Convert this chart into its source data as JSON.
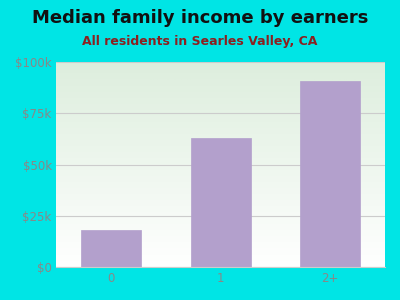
{
  "title": "Median family income by earners",
  "subtitle": "All residents in Searles Valley, CA",
  "categories": [
    "0",
    "1",
    "2+"
  ],
  "values": [
    18000,
    63000,
    90500
  ],
  "bar_color": "#b3a0cc",
  "outer_bg": "#00e5e5",
  "plot_bg_top": "#ddeedd",
  "plot_bg_bottom": "#ffffff",
  "title_color": "#111111",
  "subtitle_color": "#8b2020",
  "tick_color": "#888888",
  "grid_color": "#cccccc",
  "ylim": [
    0,
    100000
  ],
  "yticks": [
    0,
    25000,
    50000,
    75000,
    100000
  ],
  "ytick_labels": [
    "$0",
    "$25k",
    "$50k",
    "$75k",
    "$100k"
  ],
  "title_fontsize": 13,
  "subtitle_fontsize": 9,
  "tick_fontsize": 8.5
}
